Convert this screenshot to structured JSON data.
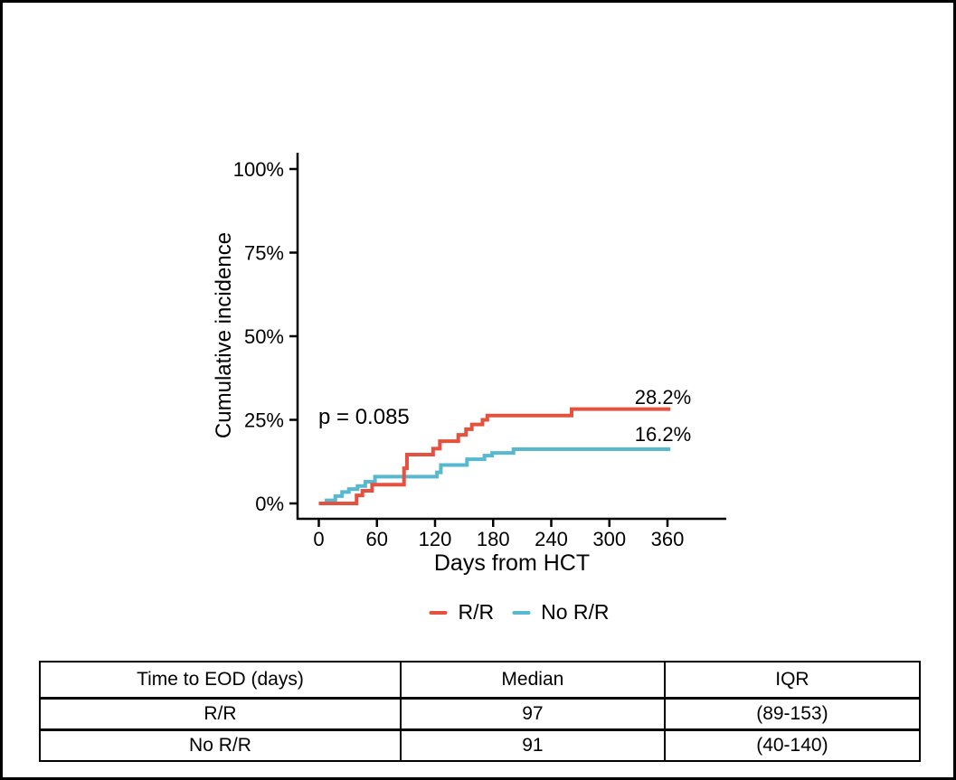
{
  "chart_data": {
    "type": "line",
    "subtype": "step-cumulative-incidence",
    "title": "",
    "xlabel": "Days from HCT",
    "ylabel": "Cumulative incidence",
    "grid": false,
    "legend_position": "bottom",
    "xlim": [
      0,
      420
    ],
    "ylim": [
      0,
      100
    ],
    "x_ticks": [
      0,
      60,
      120,
      180,
      240,
      300,
      360
    ],
    "y_tick_values": [
      0,
      25,
      50,
      75,
      100
    ],
    "y_ticks": [
      "0%",
      "25%",
      "50%",
      "75%",
      "100%"
    ],
    "x_end": 363,
    "annotations": {
      "p_value": "p = 0.085",
      "final_rr": "28.2%",
      "final_norr": "16.2%"
    },
    "series": [
      {
        "name": "R/R",
        "color": "#E6513F",
        "final_value": 28.2,
        "points": [
          [
            0,
            0
          ],
          [
            39,
            2.4
          ],
          [
            45,
            3.8
          ],
          [
            55,
            5.6
          ],
          [
            88,
            10.5
          ],
          [
            91,
            14.6
          ],
          [
            118,
            16.4
          ],
          [
            125,
            18.6
          ],
          [
            144,
            20.5
          ],
          [
            152,
            22.2
          ],
          [
            158,
            23.6
          ],
          [
            169,
            25.0
          ],
          [
            174,
            26.3
          ],
          [
            261,
            28.2
          ]
        ]
      },
      {
        "name": "No R/R",
        "color": "#56B9D0",
        "final_value": 16.2,
        "points": [
          [
            0,
            0
          ],
          [
            8,
            0.9
          ],
          [
            17,
            2.2
          ],
          [
            24,
            3.4
          ],
          [
            31,
            4.3
          ],
          [
            40,
            5.2
          ],
          [
            48,
            6.5
          ],
          [
            58,
            8.0
          ],
          [
            122,
            9.3
          ],
          [
            126,
            11.5
          ],
          [
            153,
            13.2
          ],
          [
            171,
            14.3
          ],
          [
            179,
            15.1
          ],
          [
            201,
            16.2
          ]
        ]
      }
    ]
  },
  "table": {
    "headers": [
      "Time to EOD (days)",
      "Median",
      "IQR"
    ],
    "rows": [
      [
        "R/R",
        "97",
        "(89-153)"
      ],
      [
        "No R/R",
        "91",
        "(40-140)"
      ]
    ]
  }
}
